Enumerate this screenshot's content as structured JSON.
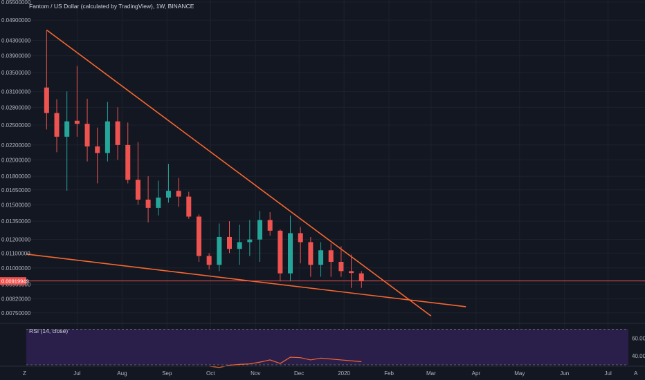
{
  "header": {
    "title": "Fantom / US Dollar (calculated by TradingView), 1W, BINANCE"
  },
  "price_label": "0.00919949",
  "rsi_title": "RSI (14, close)",
  "toolbar": {
    "zoom_icon_label": "Z",
    "auto_scale_label": "A"
  },
  "colors": {
    "background": "#131722",
    "up": "#26a69a",
    "down": "#ef5350",
    "trendline": "#f7682f",
    "price_line": "#ef5350",
    "rsi_band": "#2a1e4a",
    "rsi_line": "#f7682f",
    "grid": "#1e222d",
    "axis_text": "#b2b5be"
  },
  "chart_data": [
    {
      "type": "candlestick",
      "title": "Fantom / US Dollar (calculated by TradingView), 1W, BINANCE",
      "y_scale": "log",
      "ylim": [
        0.0072,
        0.055
      ],
      "y_ticks": [
        {
          "label": "0.05500000",
          "value": 0.055
        },
        {
          "label": "0.04900000",
          "value": 0.049
        },
        {
          "label": "0.04300000",
          "value": 0.043
        },
        {
          "label": "0.03900000",
          "value": 0.039
        },
        {
          "label": "0.03500000",
          "value": 0.035
        },
        {
          "label": "0.03100000",
          "value": 0.031
        },
        {
          "label": "0.02800000",
          "value": 0.028
        },
        {
          "label": "0.02500000",
          "value": 0.025
        },
        {
          "label": "0.02200000",
          "value": 0.022
        },
        {
          "label": "0.02000000",
          "value": 0.02
        },
        {
          "label": "0.01800000",
          "value": 0.018
        },
        {
          "label": "0.01650000",
          "value": 0.0165
        },
        {
          "label": "0.01500000",
          "value": 0.015
        },
        {
          "label": "0.01350000",
          "value": 0.0135
        },
        {
          "label": "0.01200000",
          "value": 0.012
        },
        {
          "label": "0.01100000",
          "value": 0.011
        },
        {
          "label": "0.01000000",
          "value": 0.01
        },
        {
          "label": "0.00900000",
          "value": 0.009
        },
        {
          "label": "0.00820000",
          "value": 0.0082
        },
        {
          "label": "0.00750000",
          "value": 0.0075
        }
      ],
      "x_ticks": [
        {
          "label": "Jul",
          "date": "2019-07-01"
        },
        {
          "label": "Aug",
          "date": "2019-08-01"
        },
        {
          "label": "Sep",
          "date": "2019-09-01"
        },
        {
          "label": "Oct",
          "date": "2019-10-01"
        },
        {
          "label": "Nov",
          "date": "2019-11-01"
        },
        {
          "label": "Dec",
          "date": "2019-12-01"
        },
        {
          "label": "2020",
          "date": "2020-01-01"
        },
        {
          "label": "Feb",
          "date": "2020-02-01"
        },
        {
          "label": "Mar",
          "date": "2020-03-01"
        },
        {
          "label": "Apr",
          "date": "2020-04-01"
        },
        {
          "label": "May",
          "date": "2020-05-01"
        },
        {
          "label": "Jun",
          "date": "2020-06-01"
        },
        {
          "label": "Jul",
          "date": "2020-07-01"
        }
      ],
      "xlim": [
        "2019-05-27",
        "2020-07-15"
      ],
      "candles": [
        {
          "date": "2019-06-10",
          "open": 0.0318,
          "high": 0.046,
          "low": 0.0243,
          "close": 0.027
        },
        {
          "date": "2019-06-17",
          "open": 0.027,
          "high": 0.0295,
          "low": 0.021,
          "close": 0.0232
        },
        {
          "date": "2019-06-24",
          "open": 0.0232,
          "high": 0.031,
          "low": 0.0164,
          "close": 0.0256
        },
        {
          "date": "2019-07-01",
          "open": 0.0257,
          "high": 0.0365,
          "low": 0.0232,
          "close": 0.0252
        },
        {
          "date": "2019-07-08",
          "open": 0.0252,
          "high": 0.0296,
          "low": 0.0198,
          "close": 0.0218
        },
        {
          "date": "2019-07-15",
          "open": 0.0218,
          "high": 0.0246,
          "low": 0.0172,
          "close": 0.0209
        },
        {
          "date": "2019-07-22",
          "open": 0.0209,
          "high": 0.029,
          "low": 0.0198,
          "close": 0.0256
        },
        {
          "date": "2019-07-29",
          "open": 0.0256,
          "high": 0.028,
          "low": 0.02,
          "close": 0.022
        },
        {
          "date": "2019-08-05",
          "open": 0.022,
          "high": 0.0254,
          "low": 0.0172,
          "close": 0.0176
        },
        {
          "date": "2019-08-12",
          "open": 0.0176,
          "high": 0.0224,
          "low": 0.015,
          "close": 0.0155
        },
        {
          "date": "2019-08-19",
          "open": 0.0155,
          "high": 0.018,
          "low": 0.0134,
          "close": 0.0147
        },
        {
          "date": "2019-08-26",
          "open": 0.0147,
          "high": 0.0175,
          "low": 0.014,
          "close": 0.0157
        },
        {
          "date": "2019-09-02",
          "open": 0.0157,
          "high": 0.0195,
          "low": 0.0152,
          "close": 0.0164
        },
        {
          "date": "2019-09-09",
          "open": 0.0164,
          "high": 0.0178,
          "low": 0.0148,
          "close": 0.0158
        },
        {
          "date": "2019-09-16",
          "open": 0.0158,
          "high": 0.0163,
          "low": 0.0137,
          "close": 0.0139
        },
        {
          "date": "2019-09-23",
          "open": 0.0139,
          "high": 0.0141,
          "low": 0.0104,
          "close": 0.0108
        },
        {
          "date": "2019-09-30",
          "open": 0.0108,
          "high": 0.011,
          "low": 0.0099,
          "close": 0.0102
        },
        {
          "date": "2019-10-07",
          "open": 0.0102,
          "high": 0.0133,
          "low": 0.0098,
          "close": 0.0122
        },
        {
          "date": "2019-10-14",
          "open": 0.0122,
          "high": 0.0135,
          "low": 0.011,
          "close": 0.0113
        },
        {
          "date": "2019-10-21",
          "open": 0.0113,
          "high": 0.0132,
          "low": 0.0102,
          "close": 0.0118
        },
        {
          "date": "2019-10-28",
          "open": 0.0118,
          "high": 0.0136,
          "low": 0.0108,
          "close": 0.012
        },
        {
          "date": "2019-11-04",
          "open": 0.012,
          "high": 0.0144,
          "low": 0.0104,
          "close": 0.0136
        },
        {
          "date": "2019-11-11",
          "open": 0.0136,
          "high": 0.0143,
          "low": 0.0123,
          "close": 0.0127
        },
        {
          "date": "2019-11-18",
          "open": 0.0127,
          "high": 0.0128,
          "low": 0.00918,
          "close": 0.00966
        },
        {
          "date": "2019-11-25",
          "open": 0.00966,
          "high": 0.014,
          "low": 0.00918,
          "close": 0.0125
        },
        {
          "date": "2019-12-02",
          "open": 0.0125,
          "high": 0.013,
          "low": 0.0103,
          "close": 0.0118
        },
        {
          "date": "2019-12-09",
          "open": 0.0118,
          "high": 0.0122,
          "low": 0.00945,
          "close": 0.0102
        },
        {
          "date": "2019-12-16",
          "open": 0.0102,
          "high": 0.0118,
          "low": 0.00945,
          "close": 0.0112
        },
        {
          "date": "2019-12-23",
          "open": 0.0112,
          "high": 0.0117,
          "low": 0.00945,
          "close": 0.0104
        },
        {
          "date": "2019-12-30",
          "open": 0.0104,
          "high": 0.0115,
          "low": 0.00945,
          "close": 0.0098
        },
        {
          "date": "2020-01-06",
          "open": 0.0098,
          "high": 0.0109,
          "low": 0.0088,
          "close": 0.00968
        },
        {
          "date": "2020-01-13",
          "open": 0.00966,
          "high": 0.0098,
          "low": 0.0088,
          "close": 0.00919949
        }
      ],
      "trendlines": [
        {
          "name": "upper",
          "from": {
            "date": "2019-06-10",
            "value": 0.046
          },
          "to": {
            "date": "2020-03-01",
            "value": 0.00735
          }
        },
        {
          "name": "lower",
          "from": {
            "date": "2019-05-13",
            "value": 0.0111
          },
          "to": {
            "date": "2020-03-25",
            "value": 0.0078
          }
        }
      ],
      "last_price": 0.00919949
    },
    {
      "type": "line",
      "title": "RSI (14, close)",
      "y_ticks": [
        {
          "label": "60.00",
          "value": 60
        },
        {
          "label": "40.00",
          "value": 40
        }
      ],
      "ylim": [
        30,
        75
      ],
      "band": [
        30,
        70
      ],
      "x": [
        "2019-09-30",
        "2019-10-07",
        "2019-10-14",
        "2019-10-21",
        "2019-10-28",
        "2019-11-04",
        "2019-11-11",
        "2019-11-18",
        "2019-11-25",
        "2019-12-02",
        "2019-12-09",
        "2019-12-16",
        "2019-12-23",
        "2019-12-30",
        "2020-01-06",
        "2020-01-13"
      ],
      "values": [
        28.5,
        27.0,
        29.5,
        30.5,
        31.0,
        33.0,
        35.5,
        31.5,
        38.5,
        38.0,
        35.5,
        37.5,
        36.5,
        35.5,
        34.5,
        33.5
      ]
    }
  ]
}
